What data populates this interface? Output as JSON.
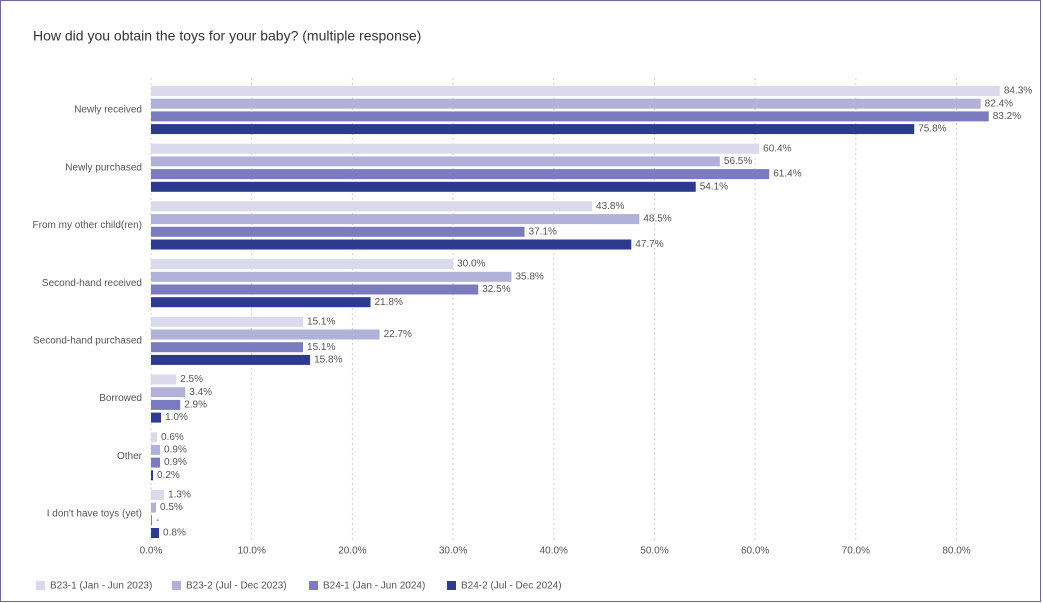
{
  "chart_data": {
    "type": "hbar",
    "title": "How did you obtain the toys for your baby? (multiple response)",
    "categories": [
      "Newly received",
      "Newly purchased",
      "From my other child(ren)",
      "Second-hand received",
      "Second-hand purchased",
      "Borrowed",
      "Other",
      "I don't have toys (yet)"
    ],
    "series": [
      {
        "name": "B23-1 (Jan - Jun 2023)",
        "color": "#dadaec",
        "values": [
          84.3,
          60.4,
          43.8,
          30.0,
          15.1,
          2.5,
          0.6,
          1.3
        ],
        "value_labels": [
          "84.3%",
          "60.4%",
          "43.8%",
          "30.0%",
          "15.1%",
          "2.5%",
          "0.6%",
          "1.3%"
        ]
      },
      {
        "name": "B23-2 (Jul - Dec 2023)",
        "color": "#b1b1d9",
        "values": [
          82.4,
          56.5,
          48.5,
          35.8,
          22.7,
          3.4,
          0.9,
          0.5
        ],
        "value_labels": [
          "82.4%",
          "56.5%",
          "48.5%",
          "35.8%",
          "22.7%",
          "3.4%",
          "0.9%",
          "0.5%"
        ]
      },
      {
        "name": "B24-1 (Jan - Jun 2024)",
        "color": "#7b7bbf",
        "values": [
          83.2,
          61.4,
          37.1,
          32.5,
          15.1,
          2.9,
          0.9,
          0
        ],
        "value_labels": [
          "83.2%",
          "61.4%",
          "37.1%",
          "32.5%",
          "15.1%",
          "2.9%",
          "0.9%",
          "-"
        ]
      },
      {
        "name": "B24-2 (Jul - Dec 2024)",
        "color": "#2c3a8f",
        "values": [
          75.8,
          54.1,
          47.7,
          21.8,
          15.8,
          1.0,
          0.2,
          0.8
        ],
        "value_labels": [
          "75.8%",
          "54.1%",
          "47.7%",
          "21.8%",
          "15.8%",
          "1.0%",
          "0.2%",
          "0.8%"
        ]
      }
    ],
    "xlim": [
      0,
      87
    ],
    "xticks": [
      {
        "value": 0,
        "label": "0.0%"
      },
      {
        "value": 10,
        "label": "10.0%"
      },
      {
        "value": 20,
        "label": "20.0%"
      },
      {
        "value": 30,
        "label": "30.0%"
      },
      {
        "value": 40,
        "label": "40.0%"
      },
      {
        "value": 50,
        "label": "50.0%"
      },
      {
        "value": 60,
        "label": "60.0%"
      },
      {
        "value": 70,
        "label": "70.0%"
      },
      {
        "value": 80,
        "label": "80.0%"
      }
    ],
    "grid": true,
    "legend": "bottom-left"
  }
}
